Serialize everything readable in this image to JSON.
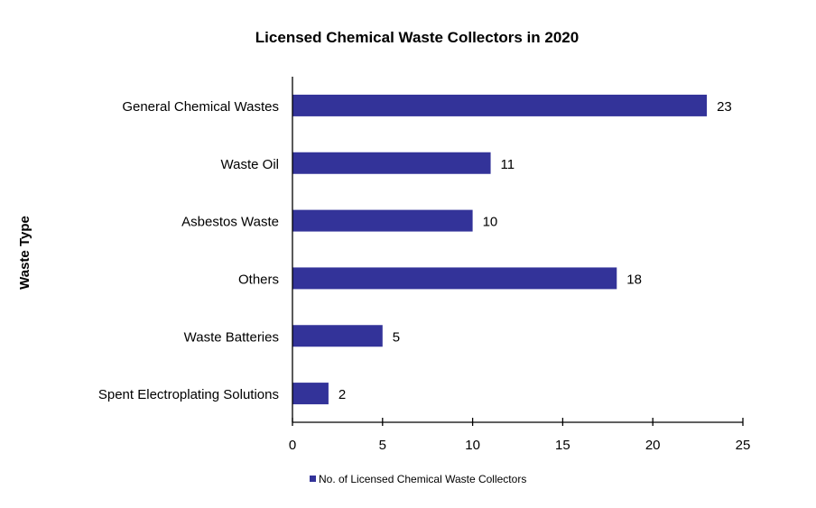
{
  "chart_data": {
    "type": "bar",
    "orientation": "horizontal",
    "title": "Licensed Chemical Waste Collectors in 2020",
    "xlabel": "",
    "ylabel": "Waste Type",
    "categories": [
      "General Chemical Wastes",
      "Waste Oil",
      "Asbestos Waste",
      "Others",
      "Waste Batteries",
      "Spent Electroplating Solutions"
    ],
    "series": [
      {
        "name": "No. of Licensed Chemical Waste Collectors",
        "values": [
          23,
          11,
          10,
          18,
          5,
          2
        ],
        "color": "#333399"
      }
    ],
    "xlim": [
      0,
      25
    ],
    "xticks": [
      0,
      5,
      10,
      15,
      20,
      25
    ],
    "grid": false,
    "legend": "bottom",
    "data_labels": true
  }
}
